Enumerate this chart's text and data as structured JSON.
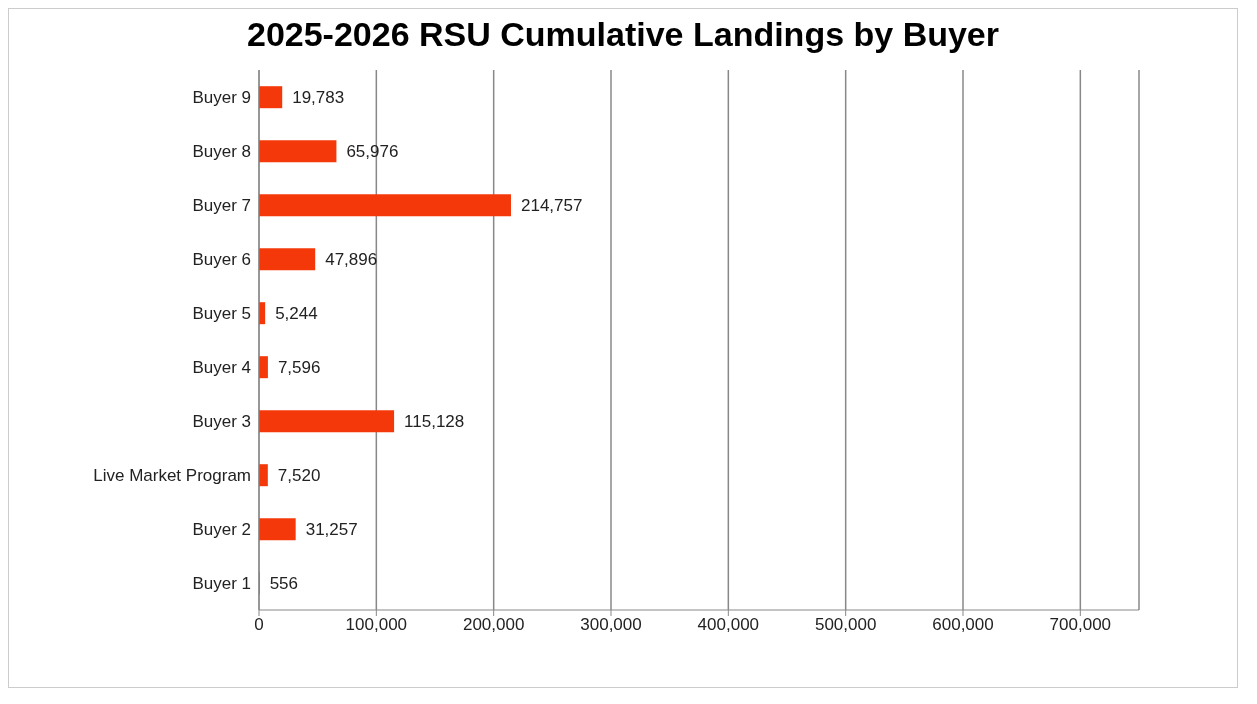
{
  "chart_data": {
    "type": "bar",
    "orientation": "horizontal",
    "title": "2025-2026 RSU Cumulative Landings by Buyer",
    "categories": [
      "Buyer 9",
      "Buyer 8",
      "Buyer 7",
      "Buyer 6",
      "Buyer 5",
      "Buyer 4",
      "Buyer 3",
      "Live Market Program",
      "Buyer 2",
      "Buyer 1"
    ],
    "values": [
      19783,
      65976,
      214757,
      47896,
      5244,
      7596,
      115128,
      7520,
      31257,
      556
    ],
    "value_labels": [
      "19,783",
      "65,976",
      "214,757",
      "47,896",
      "5,244",
      "7,596",
      "115,128",
      "7,520",
      "31,257",
      "556"
    ],
    "color": "#f4380a",
    "xlim": [
      0,
      750000
    ],
    "xticks": [
      0,
      {
        "value": 100000,
        "label": "100,000"
      },
      {
        "value": 200000,
        "label": "200,000"
      },
      {
        "value": 300000,
        "label": "300,000"
      },
      {
        "value": 400000,
        "label": "400,000"
      },
      {
        "value": 500000,
        "label": "500,000"
      },
      {
        "value": 600000,
        "label": "600,000"
      },
      {
        "value": 700000,
        "label": "700,000"
      }
    ],
    "grid": "x"
  }
}
